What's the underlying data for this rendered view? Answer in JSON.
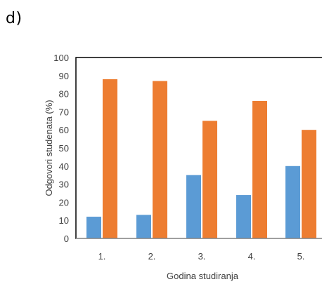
{
  "panel_label": "d)",
  "colors": {
    "series1": "#5b9bd5",
    "series2": "#ed7d31",
    "axis": "#000000",
    "text": "#404040"
  },
  "chart_data": {
    "type": "bar",
    "title": "",
    "xlabel": "Godina studiranja",
    "ylabel": "Odgovori studenata (%)",
    "ylim": [
      0,
      100
    ],
    "yticks": [
      0,
      10,
      20,
      30,
      40,
      50,
      60,
      70,
      80,
      90,
      100
    ],
    "categories": [
      "1.",
      "2.",
      "3.",
      "4.",
      "5."
    ],
    "grid": false,
    "legend": "none",
    "series": [
      {
        "values": [
          12,
          13,
          35,
          24,
          40
        ]
      },
      {
        "values": [
          88,
          87,
          65,
          76,
          60
        ]
      }
    ]
  }
}
